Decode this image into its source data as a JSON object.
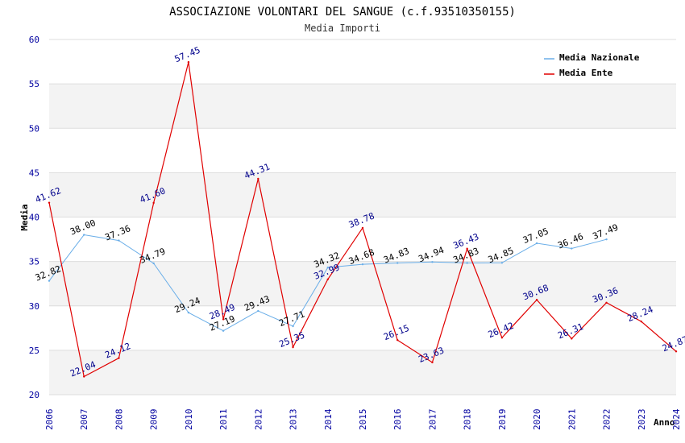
{
  "chart_data": {
    "type": "line",
    "title": "ASSOCIAZIONE VOLONTARI DEL SANGUE (c.f.93510350155)",
    "subtitle": "Media Importi",
    "xlabel": "Anno",
    "ylabel": "Media",
    "ylim": [
      20,
      60
    ],
    "yticks": [
      20,
      25,
      30,
      35,
      40,
      45,
      50,
      55,
      60
    ],
    "x": [
      "2006",
      "2007",
      "2008",
      "2009",
      "2010",
      "2011",
      "2012",
      "2013",
      "2014",
      "2015",
      "2016",
      "2017",
      "2018",
      "2019",
      "2020",
      "2021",
      "2022",
      "2023",
      "2024"
    ],
    "series": [
      {
        "name": "Media Nazionale",
        "color": "#6aaee8",
        "values": [
          32.82,
          38.0,
          37.36,
          34.79,
          29.24,
          27.19,
          29.43,
          27.71,
          34.32,
          34.68,
          34.83,
          34.94,
          34.83,
          34.85,
          37.05,
          36.46,
          37.49,
          null,
          null
        ],
        "labels": [
          "32.82",
          "38.00",
          "37.36",
          "34.79",
          "29.24",
          "27.19",
          "29.43",
          "27.71",
          "34.32",
          "34.68",
          "34.83",
          "34.94",
          "34.83",
          "34.85",
          "37.05",
          "36.46",
          "37.49",
          null,
          null
        ]
      },
      {
        "name": "Media Ente",
        "color": "#e00000",
        "values": [
          41.62,
          22.04,
          24.12,
          41.6,
          57.45,
          28.49,
          44.31,
          25.35,
          32.99,
          38.78,
          26.15,
          23.63,
          36.43,
          26.42,
          30.68,
          26.31,
          30.36,
          28.24,
          24.87
        ],
        "labels": [
          "41.62",
          "22.04",
          "24.12",
          "41.60",
          "57.45",
          "28.49",
          "44.31",
          "25.35",
          "32.99",
          "38.78",
          "26.15",
          "23.63",
          "36.43",
          "26.42",
          "30.68",
          "26.31",
          "30.36",
          "28.24",
          "24.87"
        ]
      }
    ],
    "legend_position": "top-right",
    "grid": true
  }
}
